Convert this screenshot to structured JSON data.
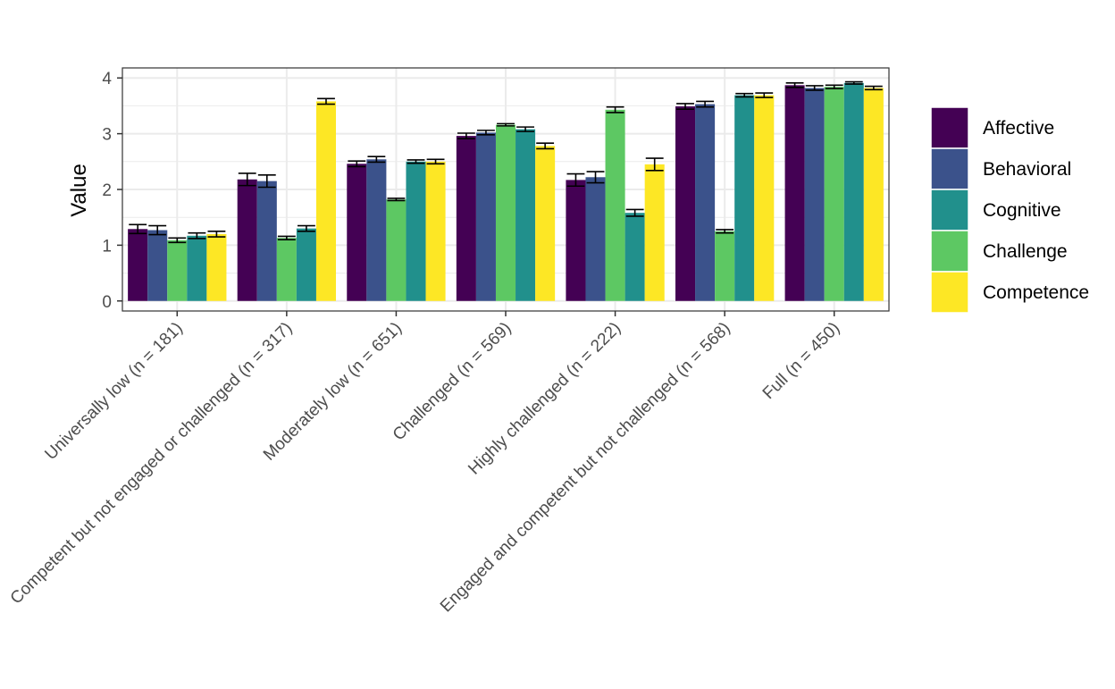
{
  "chart_data": {
    "type": "bar",
    "title": "",
    "xlabel": "",
    "ylabel": "Value",
    "ylim": [
      -0.18,
      4.18
    ],
    "yticks": [
      0,
      1,
      2,
      3,
      4
    ],
    "grid": true,
    "legend_position": "right",
    "error_bars": true,
    "categories": [
      "Universally low (n = 181)",
      "Competent but not engaged or challenged (n = 317)",
      "Moderately low (n = 651)",
      "Challenged (n = 569)",
      "Highly challenged (n = 222)",
      "Engaged and competent but not challenged (n = 568)",
      "Full (n = 450)"
    ],
    "series": [
      {
        "name": "Affective",
        "color": "#440154",
        "values": [
          1.29,
          2.18,
          2.46,
          2.96,
          2.17,
          3.49,
          3.87
        ],
        "errors": [
          0.08,
          0.11,
          0.05,
          0.05,
          0.11,
          0.05,
          0.04
        ]
      },
      {
        "name": "Behavioral",
        "color": "#3B528B",
        "values": [
          1.27,
          2.15,
          2.54,
          3.02,
          2.22,
          3.53,
          3.82
        ],
        "errors": [
          0.08,
          0.11,
          0.05,
          0.04,
          0.1,
          0.05,
          0.04
        ]
      },
      {
        "name": "Challenge",
        "color": "#5DC863",
        "values": [
          1.09,
          1.13,
          1.82,
          3.16,
          3.43,
          1.25,
          3.84
        ],
        "errors": [
          0.04,
          0.03,
          0.02,
          0.02,
          0.05,
          0.03,
          0.03
        ]
      },
      {
        "name": "Cognitive",
        "color": "#21908C",
        "values": [
          1.17,
          1.3,
          2.5,
          3.08,
          1.58,
          3.69,
          3.91
        ],
        "errors": [
          0.05,
          0.05,
          0.03,
          0.04,
          0.06,
          0.03,
          0.02
        ]
      },
      {
        "name": "Competence",
        "color": "#FDE725",
        "values": [
          1.2,
          3.58,
          2.5,
          2.78,
          2.45,
          3.69,
          3.82
        ],
        "errors": [
          0.05,
          0.05,
          0.04,
          0.05,
          0.11,
          0.04,
          0.03
        ]
      }
    ],
    "legend_order": [
      "Affective",
      "Behavioral",
      "Cognitive",
      "Challenge",
      "Competence"
    ]
  }
}
